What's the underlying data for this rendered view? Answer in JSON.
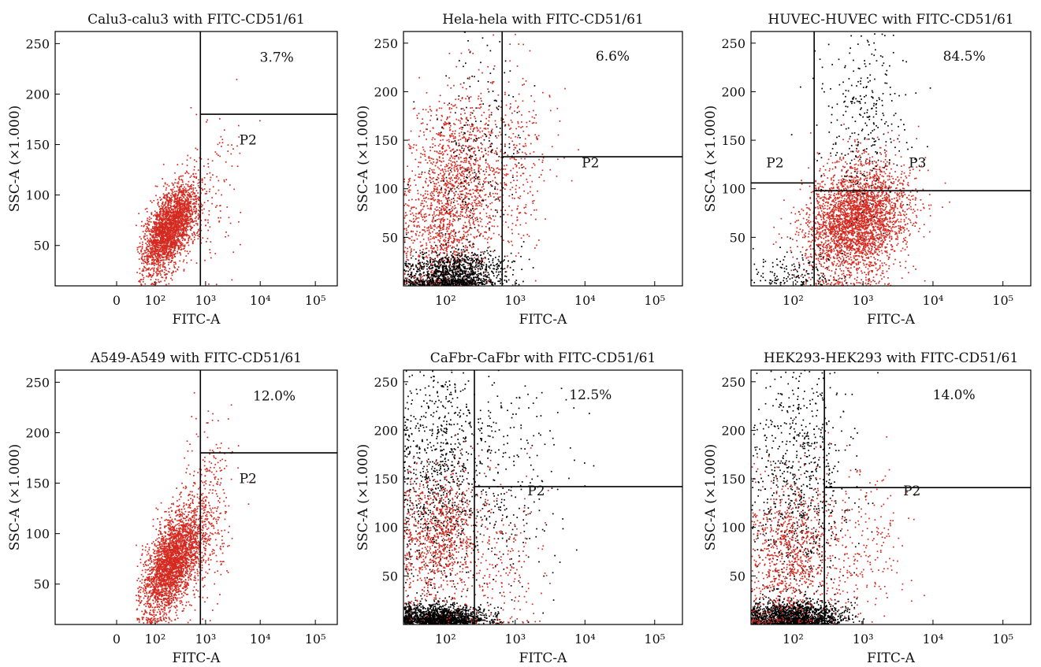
{
  "figure_panels": 6,
  "colors": {
    "gated_points": "#d42a20",
    "ungated_points": "#000000",
    "gate_lines": "#000000"
  },
  "chart_data": [
    {
      "type": "scatter",
      "title": "Calu3-calu3 with FITC-CD51/61",
      "xlabel": "FITC-A",
      "ylabel": "SSC-A (×1.000)",
      "x_scale": "biexponential",
      "x_ticks": [
        "0",
        "10²",
        "10³",
        "10⁴",
        "10⁵"
      ],
      "x_tick_values": [
        0,
        100,
        1000,
        10000,
        100000
      ],
      "xlim": [
        -300,
        250000
      ],
      "y_ticks": [
        "50",
        "100",
        "150",
        "200",
        "250"
      ],
      "y_tick_values": [
        50,
        100,
        150,
        200,
        250
      ],
      "ylim": [
        10,
        262
      ],
      "gates": [
        {
          "type": "vertical",
          "x": 800,
          "y_from": 10,
          "y_to": 262
        },
        {
          "type": "horizontal",
          "y": 180,
          "x_from": 800,
          "x_to": 250000
        }
      ],
      "gate_labels": [
        {
          "text": "P2",
          "x": 6000,
          "y": 150
        }
      ],
      "percent_label": {
        "text": "3.7%",
        "x": 20000,
        "y": 232
      },
      "point_groups": [
        {
          "color": "red",
          "n": 2600,
          "log10x_mean": 2.3,
          "log10x_sd": 0.28,
          "y_mean": 68,
          "y_sd": 22,
          "corr": 0.55
        },
        {
          "color": "red",
          "n": 120,
          "log10x_mean": 3.1,
          "log10x_sd": 0.3,
          "y_mean": 110,
          "y_sd": 40,
          "corr": 0.2
        }
      ]
    },
    {
      "type": "scatter",
      "title": "Hela-hela with FITC-CD51/61",
      "xlabel": "FITC-A",
      "ylabel": "SSC-A (×1.000)",
      "x_scale": "log",
      "x_ticks": [
        "10²",
        "10³",
        "10⁴",
        "10⁵"
      ],
      "x_tick_values": [
        100,
        1000,
        10000,
        100000
      ],
      "xlim": [
        25,
        250000
      ],
      "y_ticks": [
        "50",
        "100",
        "150",
        "200",
        "250"
      ],
      "y_tick_values": [
        50,
        100,
        150,
        200,
        250
      ],
      "ylim": [
        0,
        262
      ],
      "gates": [
        {
          "type": "vertical",
          "x": 650,
          "y_from": 0,
          "y_to": 262
        },
        {
          "type": "horizontal",
          "y": 133,
          "x_from": 650,
          "x_to": 250000
        }
      ],
      "gate_labels": [
        {
          "text": "P2",
          "x": 12000,
          "y": 122
        }
      ],
      "percent_label": {
        "text": "6.6%",
        "x": 25000,
        "y": 232
      },
      "point_groups": [
        {
          "color": "red",
          "n": 1800,
          "log10x_mean": 2.05,
          "log10x_sd": 0.35,
          "y_mean": 90,
          "y_sd": 55,
          "corr": 0.3
        },
        {
          "color": "red",
          "n": 300,
          "log10x_mean": 3.0,
          "log10x_sd": 0.3,
          "y_mean": 120,
          "y_sd": 50,
          "corr": 0.2
        },
        {
          "color": "black",
          "n": 1200,
          "log10x_mean": 2.1,
          "log10x_sd": 0.35,
          "y_mean": 12,
          "y_sd": 12,
          "corr": 0.1
        },
        {
          "color": "black",
          "n": 250,
          "log10x_mean": 2.4,
          "log10x_sd": 0.35,
          "y_mean": 120,
          "y_sd": 70,
          "corr": 0.2
        }
      ]
    },
    {
      "type": "scatter",
      "title": "HUVEC-HUVEC with FITC-CD51/61",
      "xlabel": "FITC-A",
      "ylabel": "SSC-A (×1.000)",
      "x_scale": "log",
      "x_ticks": [
        "10²",
        "10³",
        "10⁴",
        "10⁵"
      ],
      "x_tick_values": [
        100,
        1000,
        10000,
        100000
      ],
      "xlim": [
        25,
        250000
      ],
      "y_ticks": [
        "50",
        "100",
        "150",
        "200",
        "250"
      ],
      "y_tick_values": [
        50,
        100,
        150,
        200,
        250
      ],
      "ylim": [
        0,
        262
      ],
      "gates": [
        {
          "type": "vertical",
          "x": 200,
          "y_from": 0,
          "y_to": 262
        },
        {
          "type": "horizontal",
          "y": 98,
          "x_from": 200,
          "x_to": 250000
        },
        {
          "type": "horizontal",
          "y": 106,
          "x_from": 25,
          "x_to": 200
        }
      ],
      "gate_labels": [
        {
          "text": "P2",
          "x": 55,
          "y": 122
        },
        {
          "text": "P3",
          "x": 6000,
          "y": 122
        }
      ],
      "percent_label": {
        "text": "84.5%",
        "x": 28000,
        "y": 232
      },
      "point_groups": [
        {
          "color": "red",
          "n": 3200,
          "log10x_mean": 2.9,
          "log10x_sd": 0.35,
          "y_mean": 68,
          "y_sd": 30,
          "corr": 0.2
        },
        {
          "color": "black",
          "n": 300,
          "log10x_mean": 3.0,
          "log10x_sd": 0.3,
          "y_mean": 175,
          "y_sd": 45,
          "corr": 0.1
        },
        {
          "color": "black",
          "n": 150,
          "log10x_mean": 2.0,
          "log10x_sd": 0.3,
          "y_mean": 15,
          "y_sd": 12,
          "corr": 0.1
        }
      ]
    },
    {
      "type": "scatter",
      "title": "A549-A549 with FITC-CD51/61",
      "xlabel": "FITC-A",
      "ylabel": "SSC-A (×1.000)",
      "x_scale": "biexponential",
      "x_ticks": [
        "0",
        "10²",
        "10³",
        "10⁴",
        "10⁵"
      ],
      "x_tick_values": [
        0,
        100,
        1000,
        10000,
        100000
      ],
      "xlim": [
        -300,
        250000
      ],
      "y_ticks": [
        "50",
        "100",
        "150",
        "200",
        "250"
      ],
      "y_tick_values": [
        50,
        100,
        150,
        200,
        250
      ],
      "ylim": [
        10,
        262
      ],
      "gates": [
        {
          "type": "vertical",
          "x": 800,
          "y_from": 10,
          "y_to": 262
        },
        {
          "type": "horizontal",
          "y": 180,
          "x_from": 800,
          "x_to": 250000
        }
      ],
      "gate_labels": [
        {
          "text": "P2",
          "x": 6000,
          "y": 150
        }
      ],
      "percent_label": {
        "text": "12.0%",
        "x": 18000,
        "y": 232
      },
      "point_groups": [
        {
          "color": "red",
          "n": 2800,
          "log10x_mean": 2.35,
          "log10x_sd": 0.3,
          "y_mean": 72,
          "y_sd": 26,
          "corr": 0.55
        },
        {
          "color": "red",
          "n": 350,
          "log10x_mean": 3.0,
          "log10x_sd": 0.25,
          "y_mean": 120,
          "y_sd": 45,
          "corr": 0.2
        }
      ]
    },
    {
      "type": "scatter",
      "title": "CaFbr-CaFbr with FITC-CD51/61",
      "xlabel": "FITC-A",
      "ylabel": "SSC-A (×1.000)",
      "x_scale": "log",
      "x_ticks": [
        "10²",
        "10³",
        "10⁴",
        "10⁵"
      ],
      "x_tick_values": [
        100,
        1000,
        10000,
        100000
      ],
      "xlim": [
        25,
        250000
      ],
      "y_ticks": [
        "50",
        "100",
        "150",
        "200",
        "250"
      ],
      "y_tick_values": [
        50,
        100,
        150,
        200,
        250
      ],
      "ylim": [
        0,
        262
      ],
      "gates": [
        {
          "type": "vertical",
          "x": 260,
          "y_from": 0,
          "y_to": 262
        },
        {
          "type": "horizontal",
          "y": 142,
          "x_from": 260,
          "x_to": 250000
        }
      ],
      "gate_labels": [
        {
          "text": "P2",
          "x": 2000,
          "y": 133
        }
      ],
      "percent_label": {
        "text": "12.5%",
        "x": 12000,
        "y": 232
      },
      "point_groups": [
        {
          "color": "black",
          "n": 1500,
          "log10x_mean": 1.9,
          "log10x_sd": 0.35,
          "y_mean": 7,
          "y_sd": 7,
          "corr": 0.0
        },
        {
          "color": "black",
          "n": 900,
          "log10x_mean": 1.9,
          "log10x_sd": 0.35,
          "y_mean": 160,
          "y_sd": 65,
          "corr": 0.1
        },
        {
          "color": "red",
          "n": 900,
          "log10x_mean": 1.9,
          "log10x_sd": 0.3,
          "y_mean": 90,
          "y_sd": 35,
          "corr": 0.2
        },
        {
          "color": "red",
          "n": 200,
          "log10x_mean": 2.8,
          "log10x_sd": 0.3,
          "y_mean": 55,
          "y_sd": 40,
          "corr": 0.2
        },
        {
          "color": "black",
          "n": 250,
          "log10x_mean": 2.9,
          "log10x_sd": 0.4,
          "y_mean": 150,
          "y_sd": 70,
          "corr": 0.1
        }
      ]
    },
    {
      "type": "scatter",
      "title": "HEK293-HEK293 with FITC-CD51/61",
      "xlabel": "FITC-A",
      "ylabel": "SSC-A (×1.000)",
      "x_scale": "log",
      "x_ticks": [
        "10²",
        "10³",
        "10⁴",
        "10⁵"
      ],
      "x_tick_values": [
        100,
        1000,
        10000,
        100000
      ],
      "xlim": [
        25,
        250000
      ],
      "y_ticks": [
        "50",
        "100",
        "150",
        "200",
        "250"
      ],
      "y_tick_values": [
        50,
        100,
        150,
        200,
        250
      ],
      "ylim": [
        0,
        262
      ],
      "gates": [
        {
          "type": "vertical",
          "x": 280,
          "y_from": 0,
          "y_to": 262
        },
        {
          "type": "horizontal",
          "y": 141,
          "x_from": 280,
          "x_to": 250000
        }
      ],
      "gate_labels": [
        {
          "text": "P2",
          "x": 5000,
          "y": 133
        }
      ],
      "percent_label": {
        "text": "14.0%",
        "x": 20000,
        "y": 232
      },
      "point_groups": [
        {
          "color": "black",
          "n": 1600,
          "log10x_mean": 2.0,
          "log10x_sd": 0.35,
          "y_mean": 8,
          "y_sd": 8,
          "corr": 0.0
        },
        {
          "color": "black",
          "n": 800,
          "log10x_mean": 2.1,
          "log10x_sd": 0.35,
          "y_mean": 140,
          "y_sd": 70,
          "corr": 0.1
        },
        {
          "color": "red",
          "n": 900,
          "log10x_mean": 1.95,
          "log10x_sd": 0.3,
          "y_mean": 75,
          "y_sd": 40,
          "corr": 0.2
        },
        {
          "color": "red",
          "n": 250,
          "log10x_mean": 3.0,
          "log10x_sd": 0.3,
          "y_mean": 80,
          "y_sd": 40,
          "corr": 0.2
        }
      ]
    }
  ]
}
